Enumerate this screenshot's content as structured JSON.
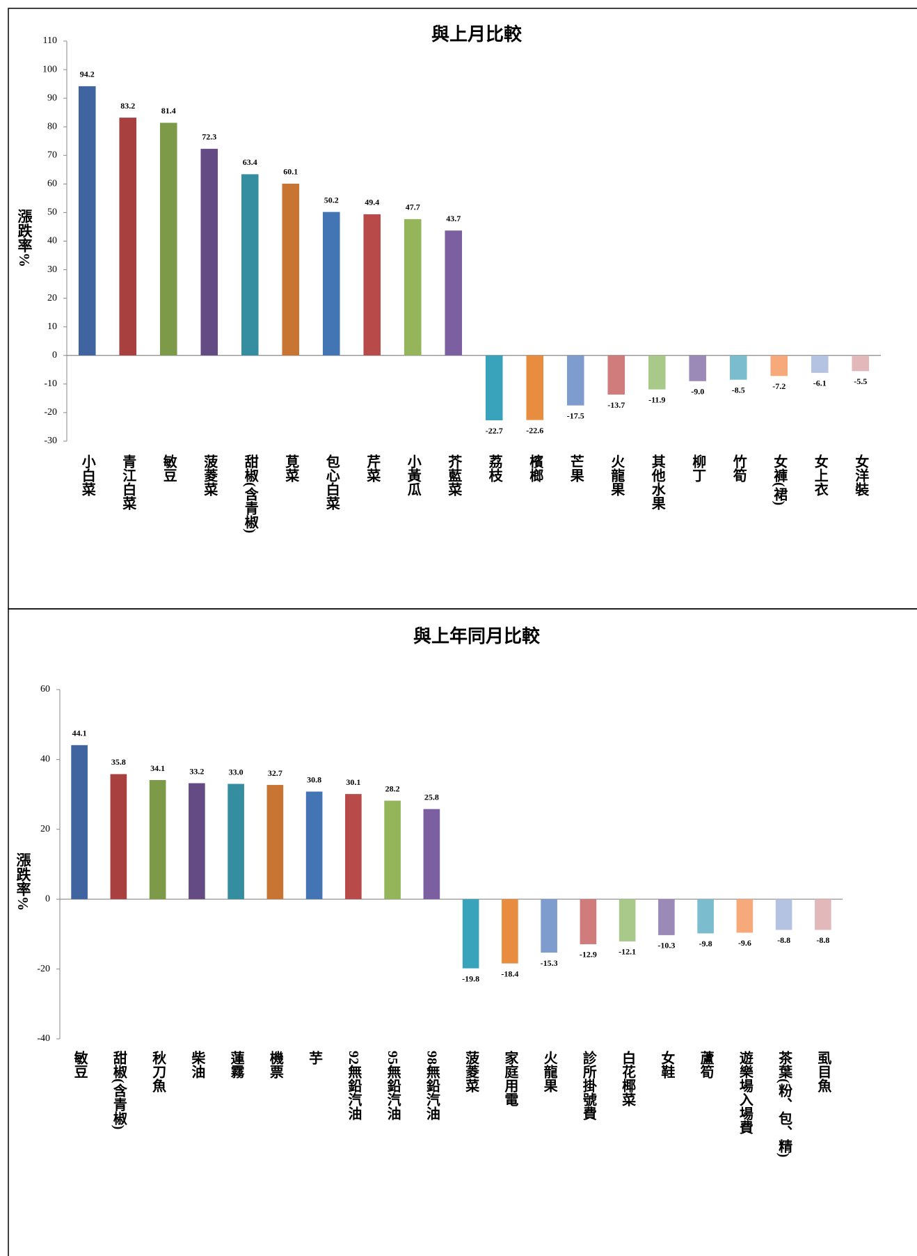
{
  "chart_data": [
    {
      "type": "bar",
      "title": "與上月比較",
      "y_label": "漲跌率%",
      "categories": [
        "小白菜",
        "青江白菜",
        "敏豆",
        "菠菱菜",
        "甜椒(含青椒)",
        "莧菜",
        "包心白菜",
        "芹菜",
        "小黃瓜",
        "芥藍菜",
        "荔枝",
        "檳榔",
        "芒果",
        "火龍果",
        "其他水果",
        "柳丁",
        "竹筍",
        "女褲(裙)",
        "女上衣",
        "女洋裝"
      ],
      "values": [
        94.2,
        83.2,
        81.4,
        72.3,
        63.4,
        60.1,
        50.2,
        49.4,
        47.7,
        43.7,
        -22.7,
        -22.6,
        -17.5,
        -13.7,
        -11.9,
        -9.0,
        -8.5,
        -7.2,
        -6.1,
        -5.5
      ],
      "value_labels": [
        "94.2",
        "83.2",
        "81.4",
        "72.3",
        "63.4",
        "60.1",
        "50.2",
        "49.4",
        "47.7",
        "43.7",
        "-22.7",
        "-22.6",
        "-17.5",
        "-13.7",
        "-11.9",
        "-9.0",
        "-8.5",
        "-7.2",
        "-6.1",
        "-5.5"
      ],
      "colors": [
        "#3f64a0",
        "#a84040",
        "#7d9a48",
        "#654b83",
        "#358ea0",
        "#c87533",
        "#4374b4",
        "#b84a4a",
        "#95b55a",
        "#7b5fa0",
        "#3aa3bc",
        "#e88d3f",
        "#7f9ccf",
        "#d07c7c",
        "#a8c98a",
        "#9b8ab8",
        "#7bbccf",
        "#f6a97a",
        "#b4c3e2",
        "#e2b8bb"
      ],
      "ylim": [
        -30,
        110
      ],
      "yticks": [
        -30,
        -20,
        -10,
        0,
        10,
        20,
        30,
        40,
        50,
        60,
        70,
        80,
        90,
        100,
        110
      ]
    },
    {
      "type": "bar",
      "title": "與上年同月比較",
      "y_label": "漲跌率%",
      "categories": [
        "敏豆",
        "甜椒(含青椒)",
        "秋刀魚",
        "柴油",
        "蓮霧",
        "機票",
        "芋",
        "92無鉛汽油",
        "95無鉛汽油",
        "98無鉛汽油",
        "菠菱菜",
        "家庭用電",
        "火龍果",
        "診所掛號費",
        "白花椰菜",
        "女鞋",
        "蘆筍",
        "遊樂場入場費",
        "茶葉(粉、包、精)",
        "虱目魚"
      ],
      "values": [
        44.1,
        35.8,
        34.1,
        33.2,
        33.0,
        32.7,
        30.8,
        30.1,
        28.2,
        25.8,
        -19.8,
        -18.4,
        -15.3,
        -12.9,
        -12.1,
        -10.3,
        -9.8,
        -9.6,
        -8.8,
        -8.8
      ],
      "value_labels": [
        "44.1",
        "35.8",
        "34.1",
        "33.2",
        "33.0",
        "32.7",
        "30.8",
        "30.1",
        "28.2",
        "25.8",
        "-19.8",
        "-18.4",
        "-15.3",
        "-12.9",
        "-12.1",
        "-10.3",
        "-9.8",
        "-9.6",
        "-8.8",
        "-8.8"
      ],
      "colors": [
        "#3f64a0",
        "#a84040",
        "#7d9a48",
        "#654b83",
        "#358ea0",
        "#c87533",
        "#4374b4",
        "#b84a4a",
        "#95b55a",
        "#7b5fa0",
        "#3aa3bc",
        "#e88d3f",
        "#7f9ccf",
        "#d07c7c",
        "#a8c98a",
        "#9b8ab8",
        "#7bbccf",
        "#f6a97a",
        "#b4c3e2",
        "#e2b8bb"
      ],
      "ylim": [
        -40,
        60
      ],
      "yticks": [
        -40,
        -20,
        0,
        20,
        40,
        60
      ]
    }
  ]
}
